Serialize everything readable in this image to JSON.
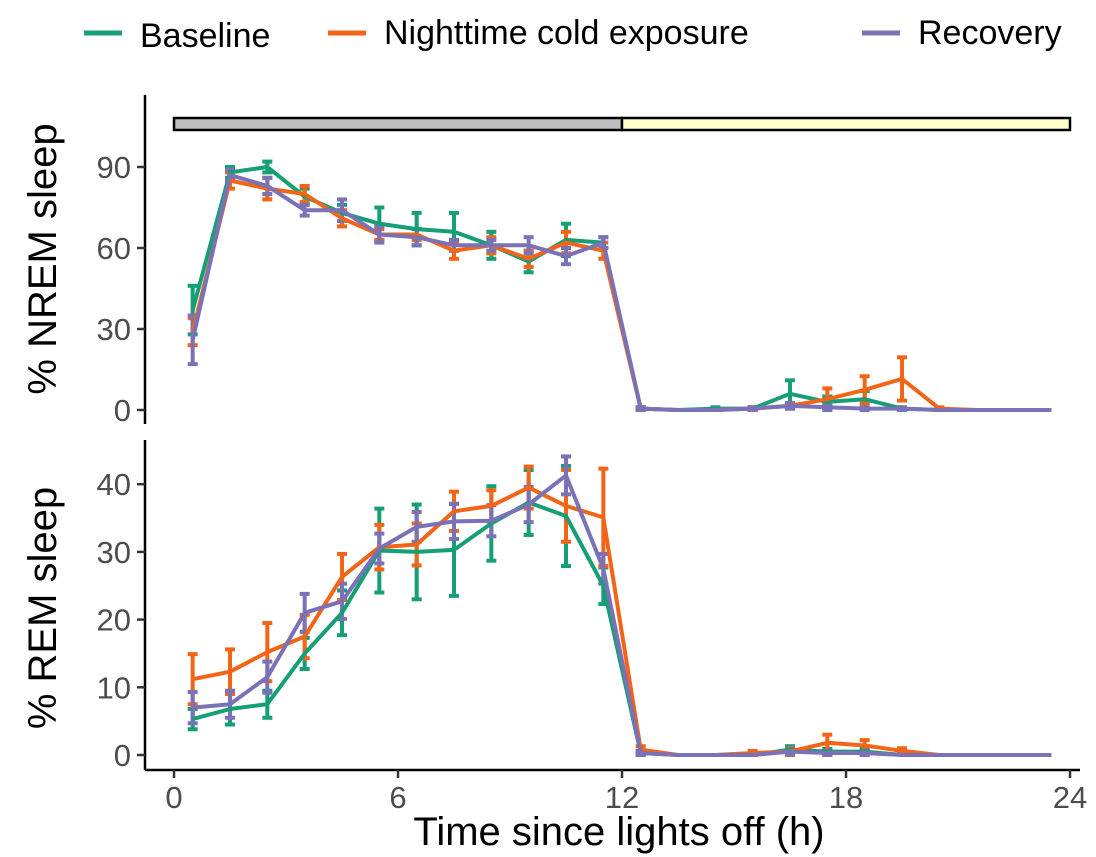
{
  "colors": {
    "baseline": "#169e77",
    "cold": "#f26516",
    "recovery": "#7a71b6",
    "dark_phase": "#bebebe",
    "light_phase": "#ffffcc"
  },
  "chart_data": [
    {
      "type": "line",
      "panel": "nrem",
      "ylabel": "% NREM sleep",
      "xlim": [
        0,
        24
      ],
      "ylim": [
        0,
        110
      ],
      "yticks": [
        "0",
        "30",
        "60",
        "90"
      ],
      "x": [
        0.5,
        1.5,
        2.5,
        3.5,
        4.5,
        5.5,
        6.5,
        7.5,
        8.5,
        9.5,
        10.5,
        11.5,
        12.5,
        13.5,
        14.5,
        15.5,
        16.5,
        17.5,
        18.5,
        19.5,
        20.5,
        21.5,
        22.5,
        23.5
      ],
      "light_bar": {
        "dark_range": [
          0,
          12
        ],
        "light_range": [
          12,
          24
        ]
      },
      "series": [
        {
          "name": "Baseline",
          "values": [
            37,
            88,
            90,
            79,
            73,
            69,
            67,
            66,
            61,
            55,
            63,
            62,
            0.5,
            0,
            0.5,
            0.5,
            6,
            3,
            4,
            0.5,
            0,
            0,
            0,
            0
          ],
          "errors": [
            9,
            2,
            2,
            3,
            3,
            6,
            6,
            7,
            5,
            4,
            6,
            2,
            0.5,
            0,
            0.5,
            0.5,
            5,
            2,
            3,
            0.5,
            0,
            0,
            0,
            0
          ]
        },
        {
          "name": "Nighttime cold exposure",
          "values": [
            29,
            85,
            82,
            80,
            71,
            65,
            65,
            59,
            61,
            56,
            62,
            59,
            0.5,
            0,
            0,
            0.5,
            1.5,
            4,
            7.5,
            11.5,
            0.5,
            0,
            0,
            0
          ],
          "errors": [
            5,
            3,
            4,
            3,
            3,
            2,
            2,
            3,
            3,
            3,
            4,
            3,
            0.5,
            0,
            0,
            0.5,
            1,
            4,
            5,
            8,
            0.5,
            0,
            0,
            0
          ]
        },
        {
          "name": "Recovery",
          "values": [
            26,
            87,
            83,
            74,
            74,
            65,
            64,
            61,
            61,
            61,
            57,
            62,
            0.5,
            0,
            0,
            0.5,
            1.5,
            1,
            0.5,
            0.5,
            0,
            0,
            0,
            0
          ],
          "errors": [
            9,
            2,
            3,
            2,
            4,
            3,
            3,
            2,
            2,
            3,
            3,
            2,
            0.5,
            0,
            0,
            0.5,
            1,
            1,
            0.5,
            0.5,
            0,
            0,
            0,
            0
          ]
        }
      ]
    },
    {
      "type": "line",
      "panel": "rem",
      "ylabel": "% REM sleep",
      "xlabel": "Time since lights off (h)",
      "xlim": [
        0,
        24
      ],
      "ylim": [
        -1.5,
        46
      ],
      "yticks": [
        "0",
        "10",
        "20",
        "30",
        "40"
      ],
      "xticks": [
        "0",
        "6",
        "12",
        "18",
        "24"
      ],
      "x": [
        0.5,
        1.5,
        2.5,
        3.5,
        4.5,
        5.5,
        6.5,
        7.5,
        8.5,
        9.5,
        10.5,
        11.5,
        12.5,
        13.5,
        14.5,
        15.5,
        16.5,
        17.5,
        18.5,
        19.5,
        20.5,
        21.5,
        22.5,
        23.5
      ],
      "series": [
        {
          "name": "Baseline",
          "values": [
            5.3,
            6.8,
            7.5,
            15,
            21,
            30.2,
            30,
            30.3,
            34.2,
            37.3,
            35.3,
            25,
            0.3,
            0,
            0,
            0,
            0.8,
            0.5,
            0.5,
            0,
            0,
            0,
            0,
            0
          ],
          "errors": [
            1.5,
            2.3,
            2,
            2.3,
            3.3,
            6.2,
            7,
            6.8,
            5.5,
            4.8,
            7.4,
            2.7,
            0.3,
            0,
            0,
            0,
            0.5,
            0.4,
            0.4,
            0,
            0,
            0,
            0,
            0
          ]
        },
        {
          "name": "Nighttime cold exposure",
          "values": [
            11.2,
            12.3,
            15.2,
            17.5,
            26.3,
            30.7,
            31.1,
            36,
            36.8,
            39.5,
            36.8,
            35.1,
            0.8,
            0,
            0,
            0.3,
            0.5,
            1.8,
            1.4,
            0.6,
            0,
            0,
            0,
            0
          ],
          "errors": [
            3.7,
            3.3,
            4.3,
            3.2,
            3.4,
            3.3,
            3.1,
            2.9,
            2.3,
            3.1,
            5.3,
            7.2,
            0.5,
            0,
            0,
            0.3,
            0.5,
            1.2,
            0.8,
            0.4,
            0,
            0,
            0,
            0
          ]
        },
        {
          "name": "Recovery",
          "values": [
            7,
            7.5,
            11.5,
            21,
            22.7,
            30.5,
            33.7,
            34.5,
            34.6,
            37,
            41.3,
            27.5,
            0.3,
            0,
            0,
            0,
            0.5,
            0.3,
            0.3,
            0,
            0,
            0,
            0,
            0
          ],
          "errors": [
            2.3,
            2,
            2.3,
            2.8,
            2.6,
            2.2,
            2.2,
            2.6,
            2.3,
            2.6,
            2.8,
            2.2,
            0.3,
            0,
            0,
            0,
            0.4,
            0.3,
            0.3,
            0,
            0,
            0,
            0,
            0
          ]
        }
      ]
    }
  ]
}
